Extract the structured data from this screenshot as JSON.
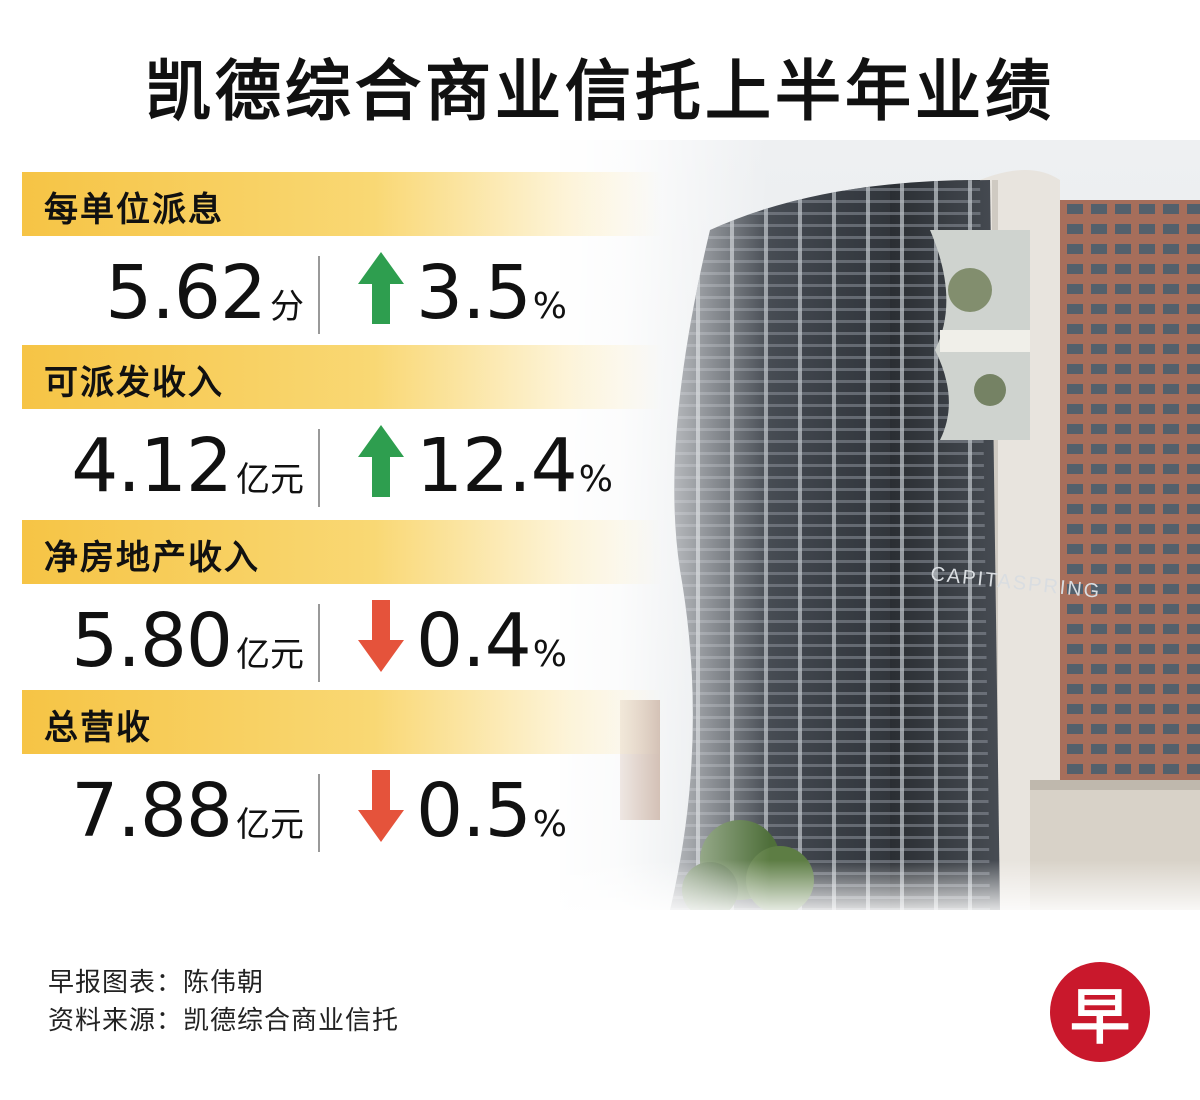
{
  "title": "凯德综合商业信托上半年业绩",
  "colors": {
    "band": "#f6c445",
    "up": "#2e9e4f",
    "down": "#e5533b",
    "logo": "#c9182c"
  },
  "metrics": [
    {
      "label": "每单位派息",
      "value": "5.62",
      "unit": "分",
      "direction": "up",
      "change": "3.5",
      "change_unit": "%"
    },
    {
      "label": "可派发收入",
      "value": "4.12",
      "unit": "亿元",
      "direction": "up",
      "change": "12.4",
      "change_unit": "%"
    },
    {
      "label": "净房地产收入",
      "value": "5.80",
      "unit": "亿元",
      "direction": "down",
      "change": "0.4",
      "change_unit": "%"
    },
    {
      "label": "总营收",
      "value": "7.88",
      "unit": "亿元",
      "direction": "down",
      "change": "0.5",
      "change_unit": "%"
    }
  ],
  "photo": {
    "building_sign": "CAPITASPRING"
  },
  "footer": {
    "credit": "早报图表：陈伟朝",
    "source": "资料来源：凯德综合商业信托"
  },
  "logo": {
    "text": "早"
  }
}
